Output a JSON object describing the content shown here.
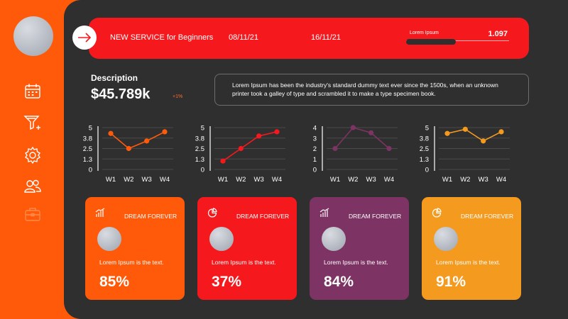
{
  "sidebar": {
    "icons": [
      "calendar-icon",
      "funnel-icon",
      "gear-icon",
      "users-icon",
      "briefcase-icon"
    ]
  },
  "banner": {
    "title": "NEW SERVICE for Beginners",
    "start_date": "08/11/21",
    "end_date": "16/11/21",
    "progress_label": "Lorem Ipsum",
    "progress_value": "1.097",
    "progress_fraction": 0.48
  },
  "description": {
    "title": "Description",
    "value": "$45.789k",
    "badge": "+1%",
    "text": "Lorem Ipsum has been the industry's standard dummy text ever since the 1500s, when an unknown printer took a galley of type and scrambled it to make a type specimen book."
  },
  "colors": {
    "orange": "#ff5a0a",
    "red": "#f5191e",
    "purple": "#7d3363",
    "amber": "#f39a1f",
    "dark": "#2f2f2f"
  },
  "chart_data": [
    {
      "type": "line",
      "categories": [
        "W1",
        "W2",
        "W3",
        "W4"
      ],
      "yticks": [
        "0",
        "1.3",
        "2.5",
        "3.8",
        "5"
      ],
      "ylim": [
        0,
        5
      ],
      "color": "#ff5a0a",
      "series": [
        {
          "values": [
            4.3,
            2.5,
            3.4,
            4.5
          ]
        }
      ]
    },
    {
      "type": "line",
      "categories": [
        "W1",
        "W2",
        "W3",
        "W4"
      ],
      "yticks": [
        "0",
        "1.3",
        "2.5",
        "3.8",
        "5"
      ],
      "ylim": [
        0,
        5
      ],
      "color": "#f5191e",
      "series": [
        {
          "values": [
            1.0,
            2.5,
            4.0,
            4.5
          ]
        }
      ]
    },
    {
      "type": "line",
      "categories": [
        "W1",
        "W2",
        "W3",
        "W4"
      ],
      "yticks": [
        "0",
        "1",
        "2",
        "3",
        "4"
      ],
      "ylim": [
        0,
        4
      ],
      "color": "#7d3363",
      "series": [
        {
          "values": [
            2.0,
            4.0,
            3.5,
            2.0
          ]
        }
      ]
    },
    {
      "type": "line",
      "categories": [
        "W1",
        "W2",
        "W3",
        "W4"
      ],
      "yticks": [
        "0",
        "1.3",
        "2.5",
        "3.8",
        "5"
      ],
      "ylim": [
        0,
        5
      ],
      "color": "#f39a1f",
      "series": [
        {
          "values": [
            4.3,
            4.8,
            3.4,
            4.5
          ]
        }
      ]
    }
  ],
  "cards": [
    {
      "title": "DREAM FOREVER",
      "text": "Lorem Ipsum is the text.",
      "value": "85%",
      "icon": "bar-chart-icon",
      "color": "#ff5a0a"
    },
    {
      "title": "DREAM FOREVER",
      "text": "Lorem Ipsum is the text.",
      "value": "37%",
      "icon": "pie-chart-icon",
      "color": "#f5191e"
    },
    {
      "title": "DREAM FOREVER",
      "text": "Lorem Ipsum is the text.",
      "value": "84%",
      "icon": "bar-chart-icon",
      "color": "#7d3363"
    },
    {
      "title": "DREAM FOREVER",
      "text": "Lorem Ipsum is the text.",
      "value": "91%",
      "icon": "pie-chart-icon",
      "color": "#f39a1f"
    }
  ]
}
